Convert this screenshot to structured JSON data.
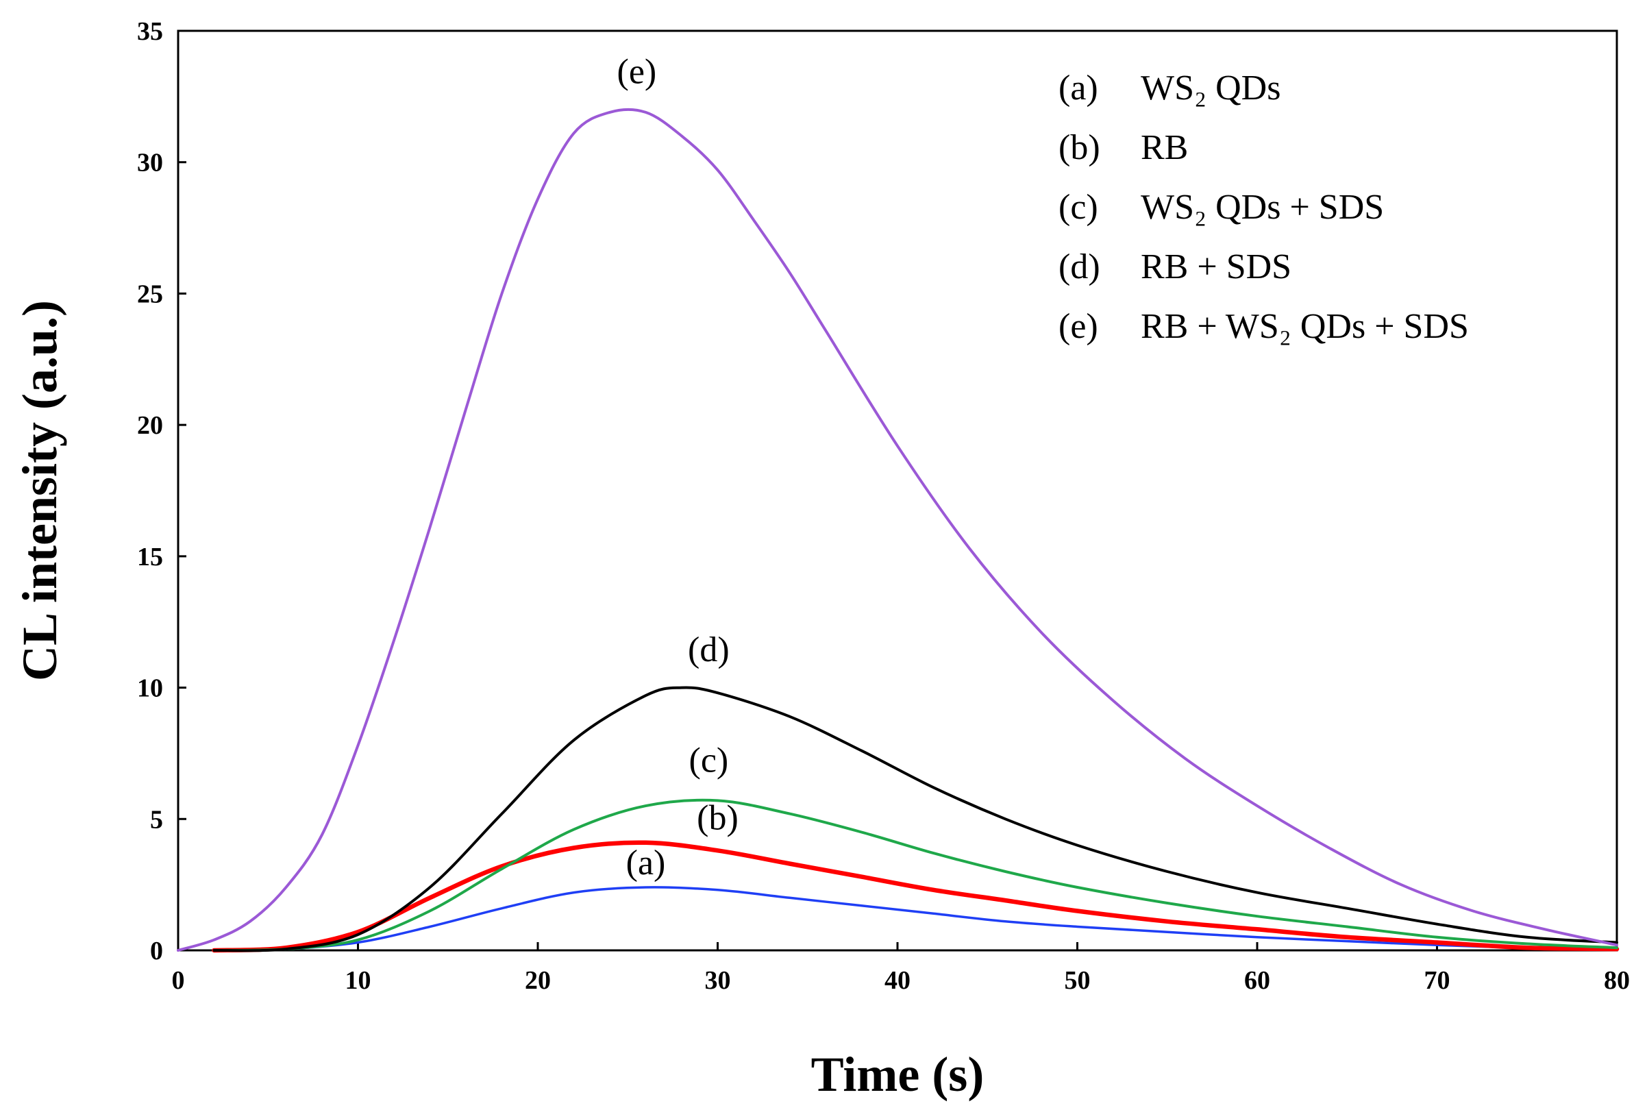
{
  "chart_data": {
    "type": "line",
    "xlabel": "Time (s)",
    "ylabel": "CL intensity (a.u.)",
    "xlim": [
      0,
      80
    ],
    "ylim": [
      0,
      35
    ],
    "xticks": [
      "0",
      "10",
      "20",
      "30",
      "40",
      "50",
      "60",
      "70",
      "80"
    ],
    "yticks": [
      "0",
      "5",
      "10",
      "15",
      "20",
      "25",
      "30",
      "35"
    ],
    "grid": false,
    "legend_position": "top-right",
    "legend": [
      {
        "tag": "(a)",
        "label": "WS₂ QDs"
      },
      {
        "tag": "(b)",
        "label": "RB"
      },
      {
        "tag": "(c)",
        "label": "WS₂ QDs + SDS"
      },
      {
        "tag": "(d)",
        "label": "RB + SDS"
      },
      {
        "tag": "(e)",
        "label": "RB + WS₂ QDs + SDS"
      }
    ],
    "series": [
      {
        "name": "(a)",
        "color": "#1f3ff5",
        "label_at": [
          26,
          2.9
        ],
        "x": [
          2,
          6,
          10,
          14,
          18,
          22,
          26,
          30,
          34,
          38,
          42,
          46,
          50,
          55,
          60,
          65,
          70,
          75,
          80
        ],
        "y": [
          0,
          0.05,
          0.3,
          0.9,
          1.6,
          2.2,
          2.4,
          2.3,
          2.0,
          1.7,
          1.4,
          1.1,
          0.9,
          0.7,
          0.5,
          0.35,
          0.2,
          0.1,
          0.05
        ]
      },
      {
        "name": "(b)",
        "color": "#ff0000",
        "label_at": [
          30,
          4.6
        ],
        "x": [
          2,
          6,
          10,
          14,
          18,
          22,
          26,
          30,
          34,
          38,
          42,
          46,
          50,
          55,
          60,
          65,
          70,
          75,
          80
        ],
        "y": [
          0,
          0.1,
          0.7,
          2.0,
          3.2,
          3.9,
          4.1,
          3.8,
          3.3,
          2.8,
          2.3,
          1.9,
          1.5,
          1.1,
          0.8,
          0.5,
          0.3,
          0.1,
          0.05
        ]
      },
      {
        "name": "(c)",
        "color": "#1fa84a",
        "label_at": [
          29.5,
          6.8
        ],
        "x": [
          2,
          6,
          10,
          14,
          18,
          22,
          26,
          30,
          34,
          38,
          42,
          46,
          50,
          55,
          60,
          65,
          70,
          75,
          80
        ],
        "y": [
          0,
          0.05,
          0.4,
          1.5,
          3.1,
          4.6,
          5.5,
          5.7,
          5.2,
          4.5,
          3.7,
          3.0,
          2.4,
          1.8,
          1.3,
          0.9,
          0.5,
          0.25,
          0.1
        ]
      },
      {
        "name": "(d)",
        "color": "#000000",
        "label_at": [
          29.5,
          11.0
        ],
        "x": [
          2,
          6,
          10,
          14,
          18,
          22,
          26,
          28,
          30,
          34,
          38,
          42,
          46,
          50,
          55,
          60,
          65,
          70,
          75,
          80
        ],
        "y": [
          0,
          0.05,
          0.6,
          2.4,
          5.2,
          8.0,
          9.7,
          10.0,
          9.8,
          8.9,
          7.6,
          6.2,
          5.0,
          4.0,
          3.0,
          2.2,
          1.6,
          1.0,
          0.5,
          0.3
        ]
      },
      {
        "name": "(e)",
        "color": "#9b59d6",
        "label_at": [
          25.5,
          33.0
        ],
        "x": [
          0,
          2,
          4,
          6,
          8,
          10,
          12,
          14,
          16,
          18,
          20,
          22,
          24,
          26,
          28,
          30,
          32,
          34,
          36,
          40,
          44,
          48,
          52,
          56,
          60,
          64,
          68,
          72,
          76,
          80
        ],
        "y": [
          0,
          0.4,
          1.1,
          2.4,
          4.4,
          7.8,
          11.8,
          16.1,
          20.6,
          25.0,
          28.6,
          31.1,
          31.9,
          31.9,
          31.0,
          29.7,
          27.8,
          25.8,
          23.6,
          19.2,
          15.3,
          12.1,
          9.5,
          7.3,
          5.5,
          3.9,
          2.5,
          1.5,
          0.8,
          0.2
        ]
      }
    ]
  }
}
